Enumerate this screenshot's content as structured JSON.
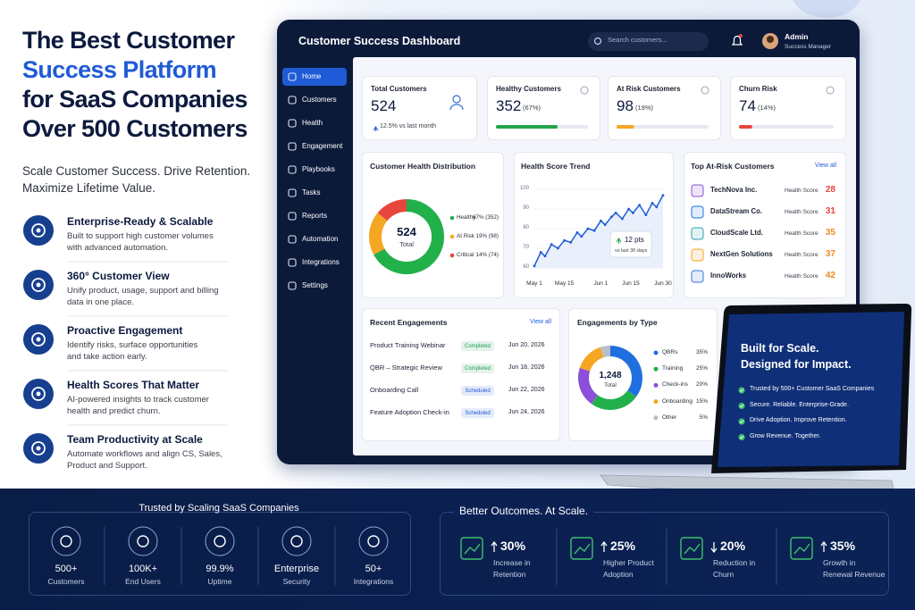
{
  "hero": {
    "title_lines": [
      "The Best Customer",
      "Success Platform",
      "for SaaS Companies",
      "Over 500 Customers"
    ],
    "title_colors": [
      "#0c1a3d",
      "#1f5bd6",
      "#0c1a3d",
      "#0c1a3d"
    ],
    "subtitle_lines": [
      "Scale Customer Success. Drive Retention.",
      "Maximize Lifetime Value."
    ]
  },
  "features": [
    {
      "title": "Enterprise-Ready & Scalable",
      "description_lines": [
        "Built to support high customer volumes",
        "with advanced automation."
      ]
    },
    {
      "title": "360° Customer View",
      "description_lines": [
        "Unify product, usage, support and billing",
        "data in one place."
      ]
    },
    {
      "title": "Proactive Engagement",
      "description_lines": [
        "Identify risks, surface opportunities",
        "and take action early."
      ]
    },
    {
      "title": "Health Scores That Matter",
      "description_lines": [
        "AI-powered insights to track customer",
        "health and predict churn."
      ]
    },
    {
      "title": "Team Productivity at Scale",
      "description_lines": [
        "Automate workflows and align CS, Sales,",
        "Product and Support."
      ]
    }
  ],
  "dashboard": {
    "title": "Customer Success Dashboard",
    "search_placeholder": "Search customers...",
    "user": {
      "name": "Admin",
      "role": "Success Manager"
    },
    "nav": [
      "Home",
      "Customers",
      "Health",
      "Engagement",
      "Playbooks",
      "Tasks",
      "Reports",
      "Automation",
      "Integrations",
      "Settings"
    ],
    "active_nav_index": 0,
    "kpis": [
      {
        "label": "Total Customers",
        "value": "524",
        "note": "12.5% vs last month"
      },
      {
        "label": "Healthy Customers",
        "value": "352",
        "percent": 67,
        "percent_label": "(67%)",
        "color": "#22a34a"
      },
      {
        "label": "At Risk Customers",
        "value": "98",
        "percent": 19,
        "percent_label": "(19%)",
        "color": "#f5a623"
      },
      {
        "label": "Churn Risk",
        "value": "74",
        "percent": 14,
        "percent_label": "(14%)",
        "color": "#e8453c"
      }
    ],
    "health_distribution": {
      "title": "Customer Health Distribution",
      "total": "524",
      "total_label": "Total",
      "segments": [
        {
          "name": "Healthy",
          "value": 67,
          "value_label": "67% (352)",
          "color": "#22b04b"
        },
        {
          "name": "At Risk",
          "value": 19,
          "value_label": "19% (98)",
          "color": "#f5a623"
        },
        {
          "name": "Critical",
          "value": 14,
          "value_label": "14% (74)",
          "color": "#e8453c"
        }
      ]
    },
    "score_trend": {
      "title": "Health Score Trend",
      "color": "#1f5bd6",
      "xlim": [
        0,
        60
      ],
      "ylim": [
        60,
        100
      ],
      "yticks": [
        60,
        70,
        80,
        90,
        100
      ],
      "xticks": [
        {
          "value": 0,
          "label": "May 1"
        },
        {
          "value": 14,
          "label": "May 15"
        },
        {
          "value": 31,
          "label": "Jun 1"
        },
        {
          "value": 45,
          "label": "Jun 15"
        },
        {
          "value": 60,
          "label": "Jun 30"
        }
      ],
      "x": [
        0,
        3,
        5,
        8,
        11,
        14,
        17,
        20,
        22,
        25,
        28,
        31,
        33,
        36,
        38,
        41,
        44,
        46,
        49,
        52,
        55,
        57,
        60
      ],
      "values": [
        61,
        68,
        66,
        72,
        70,
        74,
        73,
        78,
        76,
        80,
        79,
        84,
        82,
        86,
        88,
        85,
        90,
        88,
        92,
        87,
        93,
        91,
        97
      ],
      "badge": {
        "value": "12 pts",
        "note": "vs last 30 days"
      }
    },
    "at_risk": {
      "title": "Top At-Risk Customers",
      "action": "View all",
      "metric_label": "Health Score",
      "rows": [
        {
          "name": "TechNova Inc.",
          "score": 28,
          "color": "#e8453c"
        },
        {
          "name": "DataStream Co.",
          "score": 31,
          "color": "#e8453c"
        },
        {
          "name": "CloudScale Ltd.",
          "score": 35,
          "color": "#f08a1c"
        },
        {
          "name": "NextGen Solutions",
          "score": 37,
          "color": "#f08a1c"
        },
        {
          "name": "InnoWorks",
          "score": 42,
          "color": "#f08a1c"
        }
      ]
    },
    "recent_engagements": {
      "title": "Recent Engagements",
      "action": "View all",
      "rows": [
        {
          "name": "Product Training Webinar",
          "status": "Completed",
          "status_color": "#1f9d55",
          "date": "Jun 20, 2026"
        },
        {
          "name": "QBR – Strategic Review",
          "status": "Completed",
          "status_color": "#1f9d55",
          "date": "Jun 18, 2026"
        },
        {
          "name": "Onboarding Call",
          "status": "Scheduled",
          "status_color": "#1f5bd6",
          "date": "Jun 22, 2026"
        },
        {
          "name": "Feature Adoption Check-in",
          "status": "Scheduled",
          "status_color": "#1f5bd6",
          "date": "Jun 24, 2026"
        }
      ]
    },
    "engagements_by_type": {
      "title": "Engagements by Type",
      "total": "1,248",
      "total_label": "Total",
      "segments": [
        {
          "name": "QBRs",
          "value": 35,
          "value_label": "35%",
          "color": "#1f6fe0"
        },
        {
          "name": "Training",
          "value": 25,
          "value_label": "25%",
          "color": "#22b04b"
        },
        {
          "name": "Check-ins",
          "value": 20,
          "value_label": "20%",
          "color": "#8b4fd8"
        },
        {
          "name": "Onboarding",
          "value": 15,
          "value_label": "15%",
          "color": "#f5a623"
        },
        {
          "name": "Other",
          "value": 5,
          "value_label": "5%",
          "color": "#b8bec9"
        }
      ]
    }
  },
  "laptop": {
    "heading_lines": [
      "Built for Scale.",
      "Designed for Impact."
    ],
    "points": [
      "Trusted by 500+ Customer SaaS Companies",
      "Secure. Reliable. Enterprise-Grade.",
      "Drive Adoption. Improve Retention.",
      "Grow Revenue. Together."
    ]
  },
  "trusted": {
    "title": "Trusted by Scaling SaaS Companies",
    "stats": [
      {
        "value": "500+",
        "label": "Customers"
      },
      {
        "value": "100K+",
        "label": "End Users"
      },
      {
        "value": "99.9%",
        "label": "Uptime"
      },
      {
        "value": "Enterprise",
        "label": "Security"
      },
      {
        "value": "50+",
        "label": "Integrations"
      }
    ]
  },
  "outcomes": {
    "title": "Better Outcomes. At Scale.",
    "stats": [
      {
        "direction": "up",
        "value": "30%",
        "label_lines": [
          "Increase in",
          "Retention"
        ]
      },
      {
        "direction": "up",
        "value": "25%",
        "label_lines": [
          "Higher Product",
          "Adoption"
        ]
      },
      {
        "direction": "down",
        "value": "20%",
        "label_lines": [
          "Reduction in",
          "Churn"
        ]
      },
      {
        "direction": "up",
        "value": "35%",
        "label_lines": [
          "Growth in",
          "Renewal Revenue"
        ]
      }
    ]
  }
}
